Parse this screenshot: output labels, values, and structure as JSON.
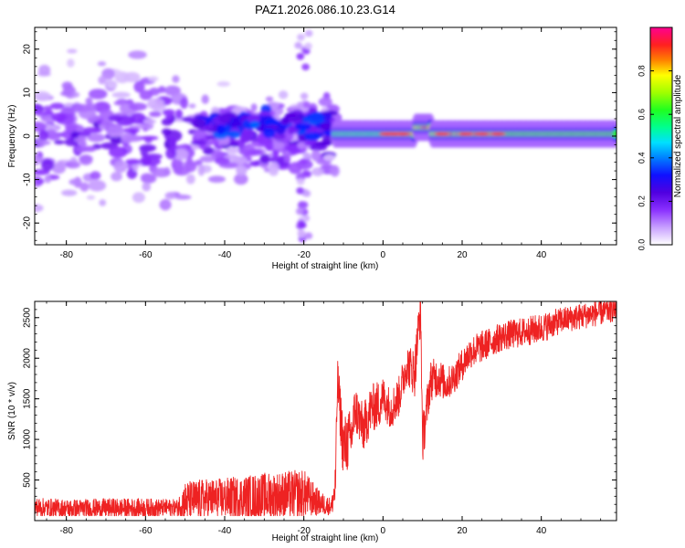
{
  "title": "PAZ1.2026.086.10.23.G14",
  "chart_data": [
    {
      "type": "heatmap",
      "xlabel": "Height of straight line (km)",
      "ylabel": "Frequency (Hz)",
      "xlim": [
        -88,
        59
      ],
      "ylim": [
        -25,
        25
      ],
      "xticks": [
        -80,
        -60,
        -40,
        -20,
        0,
        20,
        40
      ],
      "yticks": [
        -20,
        -10,
        0,
        10,
        20
      ],
      "grid": false,
      "description_values": {
        "noise_region_km": [
          -88,
          -12
        ],
        "signal_onset_km": -12,
        "signal_frequency_hz": 0.5,
        "peak_region_km": [
          0,
          30
        ]
      },
      "colorbar": {
        "label": "Normalized spectral amplitude",
        "range": [
          0,
          1
        ],
        "ticks": [
          0.0,
          0.2,
          0.4,
          0.6,
          0.8
        ],
        "tick_labels": [
          "0.0",
          "0.2",
          "0.4",
          "0.6",
          "0.8"
        ],
        "colormap": "gist_ncar-like",
        "colors": [
          "#ffffff",
          "#9a40ff",
          "#6a00e0",
          "#2020ff",
          "#00c8ff",
          "#00ff80",
          "#40ff00",
          "#e0ff00",
          "#ff8000",
          "#ff2020",
          "#ff00a0"
        ]
      }
    },
    {
      "type": "line",
      "xlabel": "Height of straight line (km)",
      "ylabel": "SNR (10 * v/v)",
      "xlim": [
        -88,
        59
      ],
      "ylim": [
        0,
        2700
      ],
      "xticks": [
        -80,
        -60,
        -40,
        -20,
        0,
        20,
        40
      ],
      "yticks": [
        500,
        1000,
        1500,
        2000,
        2500
      ],
      "grid": false,
      "series": [
        {
          "name": "SNR",
          "color": "#ee2222",
          "x": [
            -88,
            -80,
            -70,
            -60,
            -52,
            -50,
            -45,
            -40,
            -30,
            -25,
            -20,
            -16,
            -13,
            -12,
            -11.5,
            -10,
            -8,
            -7,
            -5,
            -3,
            -1,
            0,
            2,
            4,
            6,
            8,
            9.5,
            10,
            12,
            14,
            16,
            18,
            20,
            22,
            24,
            28,
            30,
            35,
            40,
            45,
            50,
            55,
            59
          ],
          "values": [
            150,
            130,
            140,
            140,
            150,
            210,
            240,
            250,
            260,
            280,
            300,
            200,
            160,
            400,
            1700,
            850,
            1000,
            1350,
            1100,
            1350,
            1400,
            1500,
            1350,
            1500,
            1900,
            1800,
            2620,
            950,
            1700,
            1750,
            1650,
            1750,
            1900,
            2050,
            2100,
            2200,
            2250,
            2300,
            2350,
            2450,
            2500,
            2550,
            2600
          ],
          "noise": [
            120,
            120,
            120,
            120,
            100,
            250,
            250,
            250,
            300,
            300,
            300,
            150,
            100,
            300,
            300,
            400,
            350,
            300,
            300,
            300,
            300,
            250,
            250,
            250,
            250,
            300,
            300,
            300,
            250,
            250,
            200,
            200,
            200,
            200,
            200,
            180,
            180,
            180,
            180,
            160,
            160,
            160,
            160
          ]
        }
      ]
    }
  ]
}
